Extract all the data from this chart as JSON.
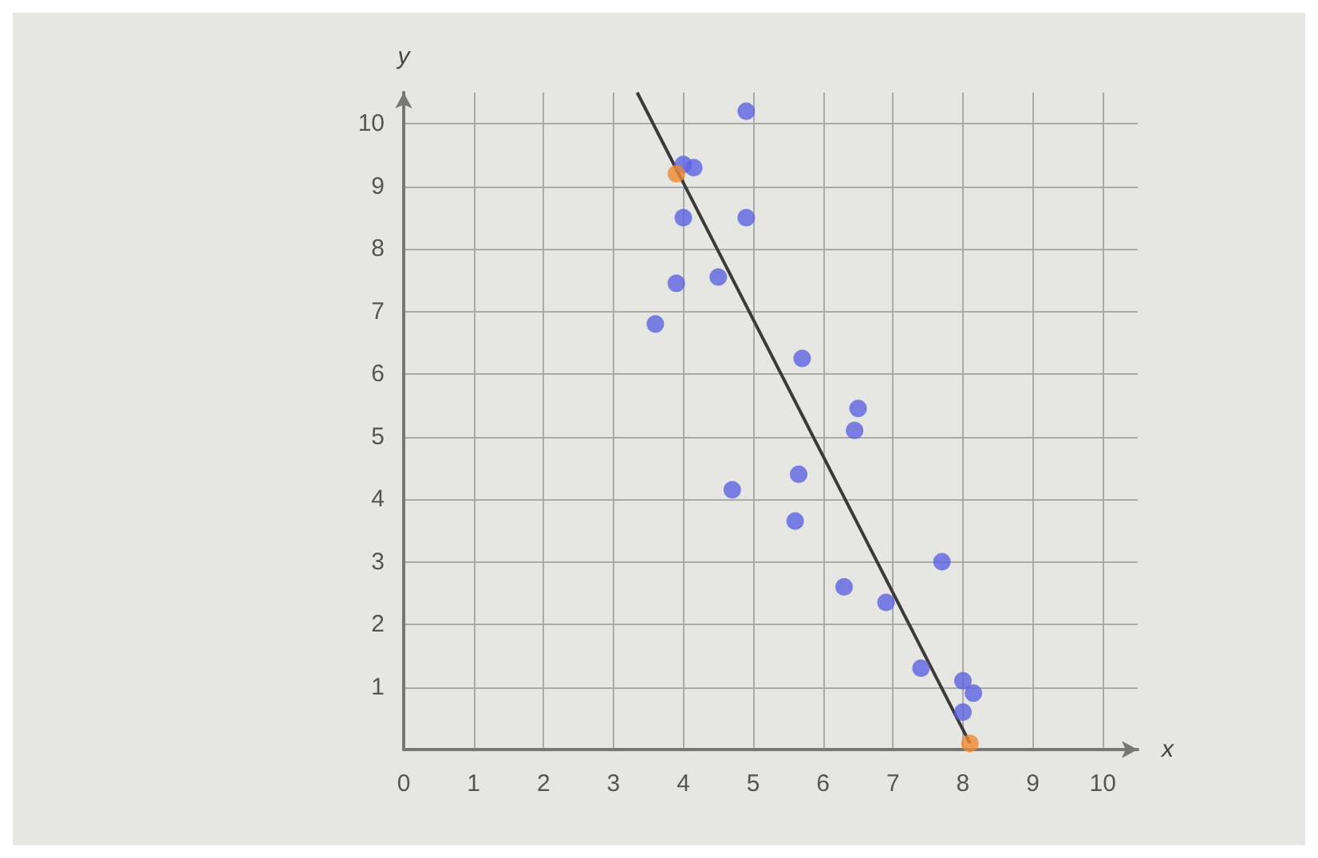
{
  "chart_data": {
    "type": "scatter",
    "xlabel": "x",
    "ylabel": "y",
    "xlim": [
      0,
      10.5
    ],
    "ylim": [
      0,
      10.5
    ],
    "xticks": [
      0,
      1,
      2,
      3,
      4,
      5,
      6,
      7,
      8,
      9,
      10
    ],
    "yticks": [
      1,
      2,
      3,
      4,
      5,
      6,
      7,
      8,
      9,
      10
    ],
    "grid": true,
    "marker": "circle",
    "series": [
      {
        "type": "line",
        "color": "#3a3a3a",
        "x": [
          3.34,
          8.1
        ],
        "values": [
          10.5,
          0.1
        ],
        "marker": "none",
        "line_style": "solid"
      },
      {
        "color": "#5b63e0",
        "x": [
          4.9,
          4.0,
          4.15,
          4.0,
          4.9,
          3.9,
          4.5,
          3.6,
          5.7,
          6.5,
          6.45,
          4.7,
          5.65,
          5.6,
          6.3,
          7.7,
          6.9,
          7.4,
          8.0,
          8.15,
          8.0
        ],
        "values": [
          10.2,
          9.35,
          9.3,
          8.5,
          8.5,
          7.45,
          7.55,
          6.8,
          6.25,
          5.45,
          5.1,
          4.15,
          4.4,
          3.65,
          2.6,
          3.0,
          2.35,
          1.3,
          1.1,
          0.9,
          0.6
        ]
      },
      {
        "color": "#f08a30",
        "x": [
          3.9,
          8.1
        ],
        "values": [
          9.2,
          0.1
        ]
      }
    ]
  }
}
